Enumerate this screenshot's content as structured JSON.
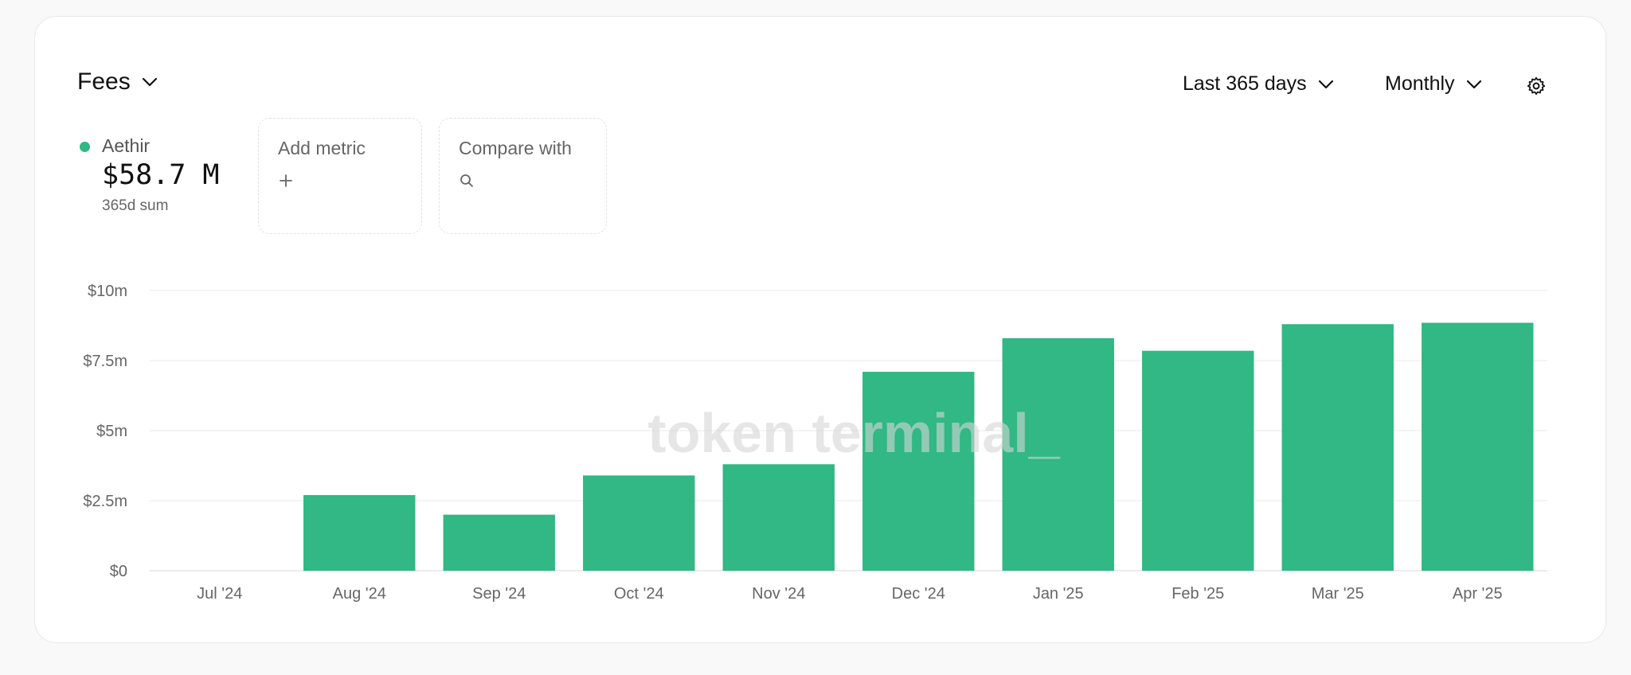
{
  "header": {
    "metric_label": "Fees",
    "range_label": "Last 365 days",
    "interval_label": "Monthly"
  },
  "legend": {
    "name": "Aethir",
    "value": "$58.7 M",
    "sub": "365d sum",
    "color": "#31b884"
  },
  "actions": {
    "add_metric": "Add metric",
    "compare_with": "Compare with"
  },
  "watermark": "token terminal_",
  "icons": {
    "metric_chevron": "chevron-down-icon",
    "settings": "gear-icon",
    "add": "plus-icon",
    "compare": "search-icon"
  },
  "chart_data": {
    "type": "bar",
    "categories": [
      "Jul '24",
      "Aug '24",
      "Sep '24",
      "Oct '24",
      "Nov '24",
      "Dec '24",
      "Jan '25",
      "Feb '25",
      "Mar '25",
      "Apr '25"
    ],
    "series": [
      {
        "name": "Aethir",
        "values": [
          0,
          2.7,
          2.0,
          3.4,
          3.8,
          7.1,
          8.3,
          7.85,
          8.8,
          8.85
        ],
        "color": "#31b884"
      }
    ],
    "y_unit": "millions USD",
    "yticks": [
      {
        "value": 0,
        "label": "$0"
      },
      {
        "value": 2.5,
        "label": "$2.5m"
      },
      {
        "value": 5,
        "label": "$5m"
      },
      {
        "value": 7.5,
        "label": "$7.5m"
      },
      {
        "value": 10,
        "label": "$10m"
      }
    ],
    "ylim": [
      0,
      10
    ],
    "grid": true
  }
}
